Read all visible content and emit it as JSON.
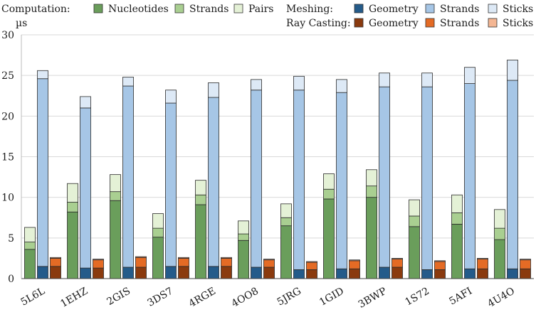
{
  "legend": {
    "computation_label": "Computation:",
    "meshing_label": "Meshing:",
    "raycasting_label": "Ray Casting:",
    "computation_items": [
      {
        "label": "Nucleotides",
        "color": "#6a9e5b"
      },
      {
        "label": "Strands",
        "color": "#a9cf91"
      },
      {
        "label": "Pairs",
        "color": "#e4f1d6"
      }
    ],
    "meshing_items": [
      {
        "label": "Geometry",
        "color": "#245b8a"
      },
      {
        "label": "Strands",
        "color": "#a6c6e6"
      },
      {
        "label": "Sticks",
        "color": "#dde9f6"
      }
    ],
    "raycasting_items": [
      {
        "label": "Geometry",
        "color": "#8a3a0e"
      },
      {
        "label": "Strands",
        "color": "#e46b25"
      },
      {
        "label": "Sticks",
        "color": "#f4b693"
      }
    ]
  },
  "chart_data": {
    "type": "bar",
    "stacked": true,
    "grouped": true,
    "ylabel": "µs",
    "ylim": [
      0,
      30
    ],
    "yticks": [
      0,
      5,
      10,
      15,
      20,
      25,
      30
    ],
    "grid": true,
    "categories": [
      "5L6L",
      "1EHZ",
      "2GIS",
      "3DS7",
      "4RGE",
      "4OO8",
      "5JRG",
      "1GID",
      "3BWP",
      "1S72",
      "5AFI",
      "4U4O"
    ],
    "groups": [
      {
        "name": "Computation",
        "series": [
          {
            "name": "Nucleotides",
            "color": "#6a9e5b",
            "values": [
              3.6,
              8.2,
              9.6,
              5.1,
              9.1,
              4.7,
              6.5,
              9.8,
              10.0,
              6.4,
              6.7,
              4.8
            ]
          },
          {
            "name": "Strands",
            "color": "#a9cf91",
            "values": [
              0.9,
              1.2,
              1.1,
              1.1,
              1.2,
              0.8,
              1.0,
              1.2,
              1.4,
              1.3,
              1.4,
              1.4
            ]
          },
          {
            "name": "Pairs",
            "color": "#e4f1d6",
            "values": [
              1.8,
              2.3,
              2.1,
              1.8,
              1.8,
              1.6,
              1.7,
              1.9,
              2.0,
              2.0,
              2.2,
              2.3
            ]
          }
        ]
      },
      {
        "name": "Meshing",
        "series": [
          {
            "name": "Geometry",
            "color": "#245b8a",
            "values": [
              1.5,
              1.3,
              1.4,
              1.5,
              1.5,
              1.4,
              1.1,
              1.2,
              1.4,
              1.1,
              1.2,
              1.2
            ]
          },
          {
            "name": "Strands",
            "color": "#a6c6e6",
            "values": [
              23.1,
              19.7,
              22.3,
              20.1,
              20.8,
              21.8,
              22.1,
              21.7,
              22.2,
              22.5,
              22.8,
              23.2
            ]
          },
          {
            "name": "Sticks",
            "color": "#dde9f6",
            "values": [
              1.0,
              1.4,
              1.1,
              1.6,
              1.8,
              1.3,
              1.7,
              1.6,
              1.7,
              1.7,
              2.0,
              2.5
            ]
          }
        ]
      },
      {
        "name": "Ray Casting",
        "series": [
          {
            "name": "Geometry",
            "color": "#8a3a0e",
            "values": [
              1.5,
              1.3,
              1.4,
              1.5,
              1.5,
              1.4,
              1.1,
              1.2,
              1.4,
              1.1,
              1.2,
              1.2
            ]
          },
          {
            "name": "Strands",
            "color": "#e46b25",
            "values": [
              1.0,
              1.0,
              1.2,
              1.0,
              1.0,
              0.9,
              0.9,
              1.0,
              1.0,
              1.0,
              1.2,
              1.1
            ]
          },
          {
            "name": "Sticks",
            "color": "#f4b693",
            "values": [
              0.1,
              0.1,
              0.1,
              0.1,
              0.1,
              0.1,
              0.1,
              0.1,
              0.1,
              0.1,
              0.1,
              0.1
            ]
          }
        ]
      }
    ]
  }
}
